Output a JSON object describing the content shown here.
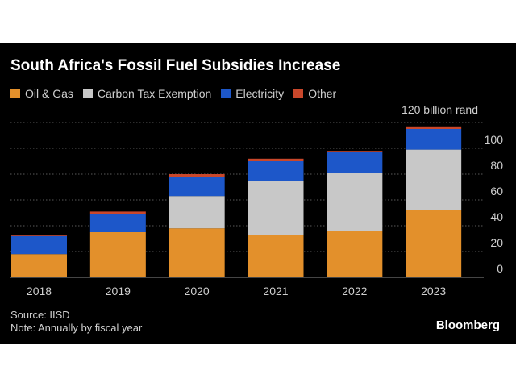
{
  "title": "South Africa's Fossil Fuel Subsidies Increase",
  "legend": [
    {
      "label": "Oil & Gas",
      "color": "#e3902b"
    },
    {
      "label": "Carbon Tax Exemption",
      "color": "#c8c8c8"
    },
    {
      "label": "Electricity",
      "color": "#1d57c9"
    },
    {
      "label": "Other",
      "color": "#c9472b"
    }
  ],
  "chart_data": {
    "type": "bar",
    "stacked": true,
    "categories": [
      "2018",
      "2019",
      "2020",
      "2021",
      "2022",
      "2023"
    ],
    "series": [
      {
        "name": "Oil & Gas",
        "color": "#e3902b",
        "values": [
          18,
          35,
          38,
          33,
          36,
          52
        ]
      },
      {
        "name": "Carbon Tax Exemption",
        "color": "#c8c8c8",
        "values": [
          0,
          0,
          25,
          42,
          45,
          47
        ]
      },
      {
        "name": "Electricity",
        "color": "#1d57c9",
        "values": [
          14,
          14,
          15,
          15,
          16,
          16
        ]
      },
      {
        "name": "Other",
        "color": "#c9472b",
        "values": [
          1,
          2,
          2,
          2,
          1,
          2
        ]
      }
    ],
    "ylabel": "120 billion rand",
    "yticks": [
      0,
      20,
      40,
      60,
      80,
      100
    ],
    "ylim": [
      0,
      120
    ],
    "grid": true,
    "legend_position": "top-left"
  },
  "footer": {
    "source": "Source: IISD",
    "note": "Note: Annually by fiscal year"
  },
  "brand": "Bloomberg"
}
